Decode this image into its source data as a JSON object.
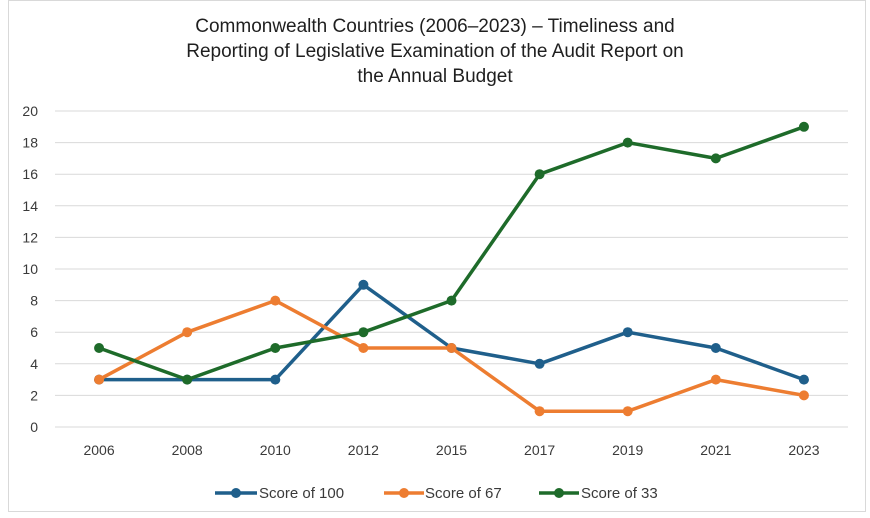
{
  "chart_data": {
    "type": "line",
    "title_lines": [
      "Commonwealth Countries (2006–2023) – Timeliness and",
      "Reporting of Legislative Examination of the Audit Report on",
      "the Annual Budget"
    ],
    "categories": [
      "2006",
      "2008",
      "2010",
      "2012",
      "2015",
      "2017",
      "2019",
      "2021",
      "2023"
    ],
    "ylim": [
      0,
      20
    ],
    "yticks": [
      0,
      2,
      4,
      6,
      8,
      10,
      12,
      14,
      16,
      18,
      20
    ],
    "grid": true,
    "legend_position": "bottom",
    "series": [
      {
        "name": "Score of 100",
        "color": "#1f5f8b",
        "values": [
          3,
          3,
          3,
          9,
          5,
          4,
          6,
          5,
          3
        ]
      },
      {
        "name": "Score of 67",
        "color": "#ed7d31",
        "values": [
          3,
          6,
          8,
          5,
          5,
          1,
          1,
          3,
          2
        ]
      },
      {
        "name": "Score of 33",
        "color": "#1e6b2a",
        "values": [
          5,
          3,
          5,
          6,
          8,
          16,
          18,
          17,
          19
        ]
      }
    ]
  }
}
